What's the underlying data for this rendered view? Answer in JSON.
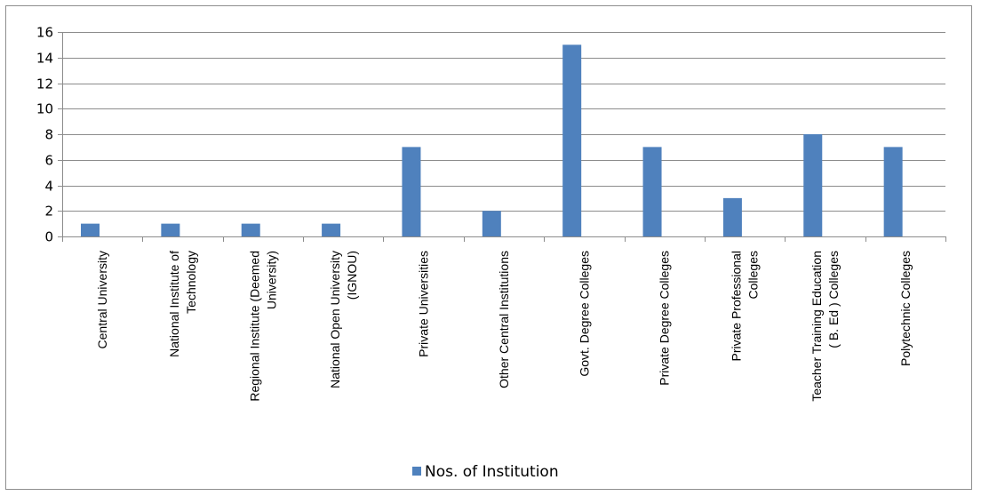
{
  "chart_data": {
    "type": "bar",
    "categories": [
      [
        "Central University"
      ],
      [
        "National Institute of",
        "Technology"
      ],
      [
        "Regional Institute (Deemed",
        "University)"
      ],
      [
        "National Open University",
        "(IGNOU)"
      ],
      [
        "Private Universities"
      ],
      [
        "Other Central Institutions"
      ],
      [
        "Govt. Degree Colleges"
      ],
      [
        "Private Degree Colleges"
      ],
      [
        "Private Professional",
        "Colleges"
      ],
      [
        "Teacher Training Education",
        "( B. Ed ) Colleges"
      ],
      [
        "Polytechnic Colleges"
      ]
    ],
    "series": [
      {
        "name": "Nos. of Institution",
        "values": [
          1,
          1,
          1,
          1,
          7,
          2,
          15,
          7,
          3,
          8,
          7
        ]
      }
    ],
    "ylim": [
      0,
      16
    ],
    "yticks": [
      0,
      2,
      4,
      6,
      8,
      10,
      12,
      14,
      16
    ],
    "grid": true,
    "legend_position": "bottom",
    "colors": {
      "bar": "#4f81bd",
      "grid": "#8c8c8c",
      "axis": "#8c8c8c",
      "frame": "#8e8e8e"
    }
  }
}
